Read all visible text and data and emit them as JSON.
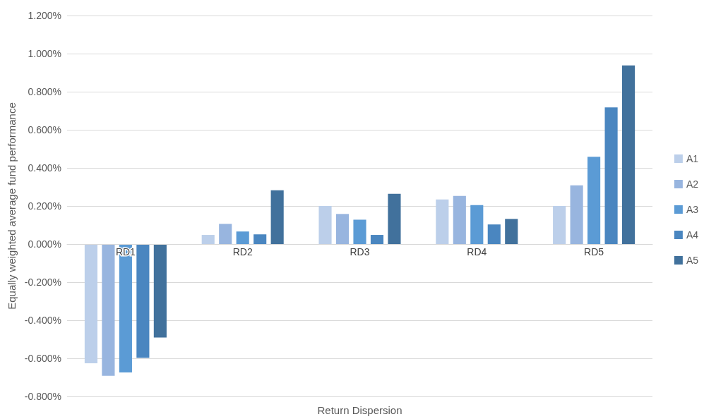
{
  "chart_data": {
    "type": "bar",
    "xlabel": "Return Dispersion",
    "ylabel": "Equally weighted average fund performance",
    "categories": [
      "RD1",
      "RD2",
      "RD3",
      "RD4",
      "RD5"
    ],
    "series": [
      {
        "name": "A1",
        "color": "#bccfea",
        "values": [
          -0.626,
          0.048,
          0.2,
          0.234,
          0.2
        ]
      },
      {
        "name": "A2",
        "color": "#98b5df",
        "values": [
          -0.692,
          0.106,
          0.158,
          0.253,
          0.308
        ]
      },
      {
        "name": "A3",
        "color": "#5b9bd5",
        "values": [
          -0.674,
          0.066,
          0.128,
          0.205,
          0.458
        ]
      },
      {
        "name": "A4",
        "color": "#4a86c0",
        "values": [
          -0.597,
          0.051,
          0.048,
          0.103,
          0.718
        ]
      },
      {
        "name": "A5",
        "color": "#41719c",
        "values": [
          -0.491,
          0.282,
          0.264,
          0.132,
          0.938
        ]
      }
    ],
    "ylim": [
      -0.8,
      1.2
    ],
    "yticks": [
      {
        "value": -0.8,
        "label": "-0.800%"
      },
      {
        "value": -0.6,
        "label": "-0.600%"
      },
      {
        "value": -0.4,
        "label": "-0.400%"
      },
      {
        "value": -0.2,
        "label": "-0.200%"
      },
      {
        "value": 0,
        "label": "0.000%"
      },
      {
        "value": 0.2,
        "label": "0.200%"
      },
      {
        "value": 0.4,
        "label": "0.400%"
      },
      {
        "value": 0.6,
        "label": "0.600%"
      },
      {
        "value": 0.8,
        "label": "0.800%"
      },
      {
        "value": 1.0,
        "label": "1.000%"
      },
      {
        "value": 1.2,
        "label": "1.200%"
      }
    ],
    "grid": "y",
    "legend": "right"
  }
}
